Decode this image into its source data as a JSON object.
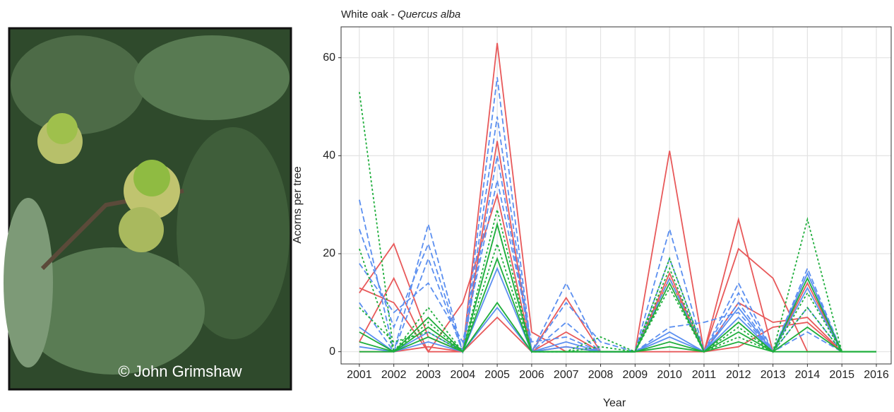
{
  "photo_credit": "© John Grimshaw",
  "chart_data": {
    "type": "line",
    "title": "White oak -",
    "title_italic": "Quercus alba",
    "x_label": "Year",
    "y_label": "Acorns per tree",
    "x": [
      2001,
      2002,
      2003,
      2004,
      2005,
      2006,
      2007,
      2008,
      2009,
      2010,
      2011,
      2012,
      2013,
      2014,
      2015,
      2016
    ],
    "xlim": [
      2000.47,
      2016.43
    ],
    "xticks": [
      2001,
      2002,
      2003,
      2004,
      2005,
      2006,
      2007,
      2008,
      2009,
      2010,
      2011,
      2012,
      2013,
      2014,
      2015,
      2016
    ],
    "ylim": [
      -2.5,
      66.3
    ],
    "yticks": [
      0,
      20,
      40,
      60
    ],
    "grid": true,
    "series": [
      {
        "color": "#e8595a",
        "dash": "solid",
        "values": [
          13,
          10,
          0,
          0,
          63,
          4,
          0,
          0,
          0,
          41,
          0,
          27,
          0,
          14,
          0,
          null
        ]
      },
      {
        "color": "#e8595a",
        "dash": "solid",
        "values": [
          12,
          22,
          3,
          0,
          43,
          0,
          11,
          0,
          0,
          16,
          0,
          21,
          15,
          0,
          0,
          null
        ]
      },
      {
        "color": "#e8595a",
        "dash": "solid",
        "values": [
          2,
          15,
          0,
          10,
          32,
          0,
          4,
          0,
          0,
          15,
          0,
          10,
          6,
          7,
          0,
          null
        ]
      },
      {
        "color": "#e8595a",
        "dash": "solid",
        "values": [
          0,
          0,
          1,
          0,
          7,
          0,
          1,
          0,
          0,
          0,
          0,
          1,
          5,
          6,
          0,
          null
        ]
      },
      {
        "color": "#5b8ff0",
        "dash": "dashed",
        "values": [
          31,
          0,
          26,
          0,
          56,
          0,
          14,
          0,
          0,
          25,
          0,
          14,
          0,
          17,
          0,
          null
        ]
      },
      {
        "color": "#5b8ff0",
        "dash": "dashed",
        "values": [
          25,
          5,
          22,
          0,
          48,
          0,
          10,
          2,
          0,
          19,
          0,
          10,
          0,
          15,
          0,
          null
        ]
      },
      {
        "color": "#5b8ff0",
        "dash": "dashed",
        "values": [
          18,
          8,
          14,
          2,
          35,
          2,
          3,
          0,
          0,
          5,
          6,
          8,
          0,
          9,
          0,
          null
        ]
      },
      {
        "color": "#5b8ff0",
        "dash": "dashed",
        "values": [
          10,
          0,
          19,
          0,
          40,
          0,
          6,
          0,
          0,
          15,
          0,
          12,
          0,
          4,
          0,
          null
        ]
      },
      {
        "color": "#5b8ff0",
        "dash": "solid",
        "values": [
          5,
          0,
          4,
          0,
          17,
          0,
          2,
          0,
          0,
          4,
          0,
          9,
          0,
          16,
          0,
          null
        ]
      },
      {
        "color": "#5b8ff0",
        "dash": "solid",
        "values": [
          1,
          0,
          2,
          0,
          9,
          0,
          1,
          0,
          0,
          3,
          0,
          7,
          0,
          13,
          0,
          null
        ]
      },
      {
        "color": "#1fae3c",
        "dash": "dotted",
        "values": [
          53,
          0,
          9,
          0,
          29,
          0,
          0,
          3,
          0,
          19,
          0,
          6,
          0,
          27,
          0,
          null
        ]
      },
      {
        "color": "#1fae3c",
        "dash": "dotted",
        "values": [
          21,
          0,
          6,
          0,
          22,
          0,
          0,
          1,
          0,
          17,
          0,
          5,
          0,
          12,
          0,
          null
        ]
      },
      {
        "color": "#1fae3c",
        "dash": "dotted",
        "values": [
          9,
          2,
          4,
          0,
          26,
          0,
          0,
          0,
          0,
          13,
          0,
          3,
          0,
          9,
          0,
          null
        ]
      },
      {
        "color": "#1fae3c",
        "dash": "solid",
        "values": [
          4,
          0,
          7,
          0,
          26,
          0,
          0,
          0,
          0,
          14,
          0,
          4,
          0,
          15,
          0,
          0
        ]
      },
      {
        "color": "#1fae3c",
        "dash": "solid",
        "values": [
          2,
          0,
          3,
          0,
          19,
          0,
          0,
          0,
          0,
          2,
          0,
          6,
          0,
          5,
          0,
          0
        ]
      },
      {
        "color": "#1fae3c",
        "dash": "solid",
        "values": [
          0,
          0,
          5,
          0,
          10,
          0,
          0,
          0,
          0,
          1,
          0,
          2,
          0,
          0,
          0,
          0
        ]
      }
    ]
  }
}
